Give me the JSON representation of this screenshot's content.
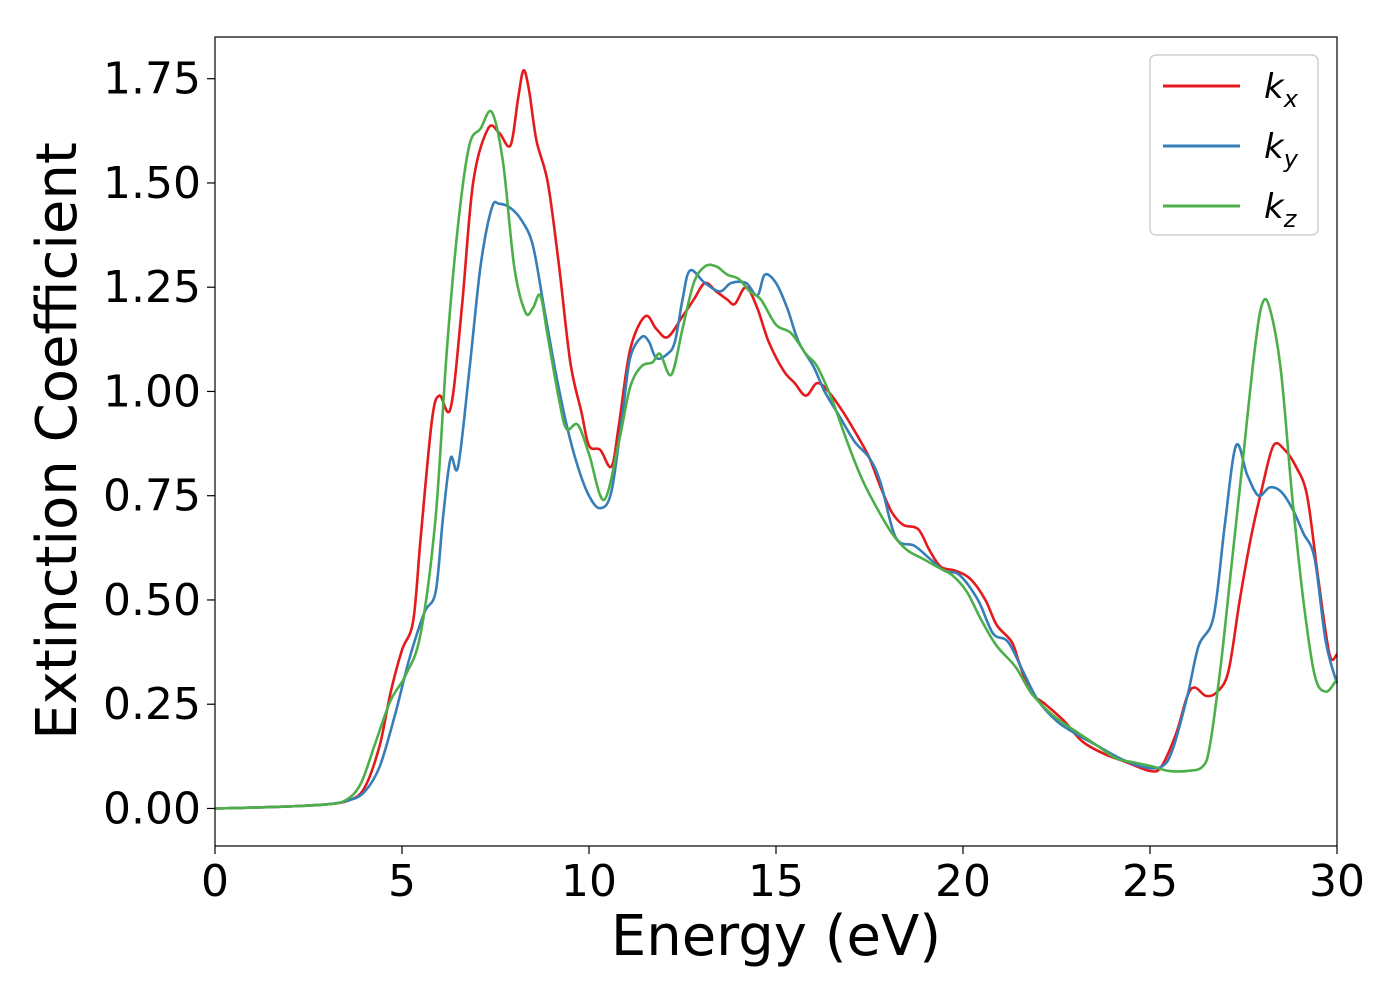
{
  "chart_data": {
    "type": "line",
    "xlabel": "Energy (eV)",
    "ylabel": "Extinction Coefficient",
    "xlim": [
      0,
      30
    ],
    "ylim": [
      -0.09,
      1.85
    ],
    "xticks": [
      0,
      5,
      10,
      15,
      20,
      25,
      30
    ],
    "yticks": [
      0.0,
      0.25,
      0.5,
      0.75,
      1.0,
      1.25,
      1.5,
      1.75
    ],
    "xtick_labels": [
      "0",
      "5",
      "10",
      "15",
      "20",
      "25",
      "30"
    ],
    "ytick_labels": [
      "0.00",
      "0.25",
      "0.50",
      "0.75",
      "1.00",
      "1.25",
      "1.50",
      "1.75"
    ],
    "grid": false,
    "legend_position": "top-right",
    "series": [
      {
        "name": "k",
        "subscript": "x",
        "color": "#e41a1c",
        "points": [
          [
            0,
            0
          ],
          [
            1,
            0.002
          ],
          [
            2,
            0.005
          ],
          [
            3,
            0.01
          ],
          [
            3.6,
            0.02
          ],
          [
            4,
            0.05
          ],
          [
            4.4,
            0.15
          ],
          [
            4.7,
            0.28
          ],
          [
            5,
            0.38
          ],
          [
            5.3,
            0.45
          ],
          [
            5.5,
            0.65
          ],
          [
            5.8,
            0.93
          ],
          [
            6,
            0.99
          ],
          [
            6.3,
            0.96
          ],
          [
            6.6,
            1.2
          ],
          [
            6.9,
            1.5
          ],
          [
            7.3,
            1.63
          ],
          [
            7.6,
            1.62
          ],
          [
            7.9,
            1.59
          ],
          [
            8.1,
            1.7
          ],
          [
            8.25,
            1.77
          ],
          [
            8.4,
            1.72
          ],
          [
            8.6,
            1.6
          ],
          [
            8.9,
            1.5
          ],
          [
            9.2,
            1.3
          ],
          [
            9.5,
            1.07
          ],
          [
            9.8,
            0.95
          ],
          [
            10,
            0.87
          ],
          [
            10.3,
            0.86
          ],
          [
            10.6,
            0.82
          ],
          [
            10.8,
            0.92
          ],
          [
            11.1,
            1.1
          ],
          [
            11.5,
            1.18
          ],
          [
            11.8,
            1.15
          ],
          [
            12.1,
            1.13
          ],
          [
            12.5,
            1.18
          ],
          [
            12.8,
            1.22
          ],
          [
            13.1,
            1.26
          ],
          [
            13.4,
            1.24
          ],
          [
            13.7,
            1.22
          ],
          [
            13.9,
            1.21
          ],
          [
            14.2,
            1.25
          ],
          [
            14.5,
            1.2
          ],
          [
            14.8,
            1.12
          ],
          [
            15.2,
            1.05
          ],
          [
            15.5,
            1.02
          ],
          [
            15.8,
            0.99
          ],
          [
            16.1,
            1.02
          ],
          [
            16.4,
            1.0
          ],
          [
            16.8,
            0.95
          ],
          [
            17.2,
            0.89
          ],
          [
            17.5,
            0.84
          ],
          [
            17.8,
            0.77
          ],
          [
            18.1,
            0.71
          ],
          [
            18.4,
            0.68
          ],
          [
            18.8,
            0.67
          ],
          [
            19.1,
            0.62
          ],
          [
            19.4,
            0.58
          ],
          [
            19.8,
            0.57
          ],
          [
            20.2,
            0.55
          ],
          [
            20.6,
            0.5
          ],
          [
            20.9,
            0.44
          ],
          [
            21.3,
            0.4
          ],
          [
            21.5,
            0.35
          ],
          [
            21.8,
            0.28
          ],
          [
            22.2,
            0.25
          ],
          [
            22.7,
            0.21
          ],
          [
            23.2,
            0.16
          ],
          [
            23.8,
            0.13
          ],
          [
            24.4,
            0.11
          ],
          [
            25,
            0.09
          ],
          [
            25.3,
            0.1
          ],
          [
            25.7,
            0.18
          ],
          [
            26,
            0.27
          ],
          [
            26.2,
            0.29
          ],
          [
            26.5,
            0.27
          ],
          [
            26.8,
            0.28
          ],
          [
            27.1,
            0.33
          ],
          [
            27.4,
            0.5
          ],
          [
            27.7,
            0.65
          ],
          [
            28,
            0.77
          ],
          [
            28.3,
            0.87
          ],
          [
            28.6,
            0.86
          ],
          [
            28.9,
            0.82
          ],
          [
            29.2,
            0.75
          ],
          [
            29.5,
            0.55
          ],
          [
            29.8,
            0.37
          ],
          [
            30,
            0.37
          ]
        ]
      },
      {
        "name": "k",
        "subscript": "y",
        "color": "#377eb8",
        "points": [
          [
            0,
            0
          ],
          [
            1,
            0.002
          ],
          [
            2,
            0.005
          ],
          [
            3,
            0.01
          ],
          [
            3.6,
            0.02
          ],
          [
            4,
            0.04
          ],
          [
            4.4,
            0.1
          ],
          [
            4.8,
            0.22
          ],
          [
            5.2,
            0.36
          ],
          [
            5.6,
            0.47
          ],
          [
            5.9,
            0.52
          ],
          [
            6.1,
            0.7
          ],
          [
            6.3,
            0.84
          ],
          [
            6.5,
            0.82
          ],
          [
            6.8,
            1.05
          ],
          [
            7.1,
            1.3
          ],
          [
            7.4,
            1.44
          ],
          [
            7.6,
            1.45
          ],
          [
            7.9,
            1.44
          ],
          [
            8.2,
            1.41
          ],
          [
            8.5,
            1.35
          ],
          [
            8.8,
            1.2
          ],
          [
            9.1,
            1.05
          ],
          [
            9.4,
            0.92
          ],
          [
            9.7,
            0.82
          ],
          [
            10,
            0.75
          ],
          [
            10.3,
            0.72
          ],
          [
            10.6,
            0.76
          ],
          [
            10.9,
            0.95
          ],
          [
            11.1,
            1.08
          ],
          [
            11.4,
            1.13
          ],
          [
            11.6,
            1.12
          ],
          [
            11.8,
            1.08
          ],
          [
            12.1,
            1.09
          ],
          [
            12.3,
            1.12
          ],
          [
            12.5,
            1.22
          ],
          [
            12.7,
            1.29
          ],
          [
            13.1,
            1.26
          ],
          [
            13.5,
            1.24
          ],
          [
            13.8,
            1.26
          ],
          [
            14.2,
            1.26
          ],
          [
            14.5,
            1.23
          ],
          [
            14.7,
            1.28
          ],
          [
            15,
            1.26
          ],
          [
            15.3,
            1.2
          ],
          [
            15.6,
            1.12
          ],
          [
            16,
            1.06
          ],
          [
            16.3,
            1.0
          ],
          [
            16.7,
            0.94
          ],
          [
            17.1,
            0.88
          ],
          [
            17.5,
            0.84
          ],
          [
            17.8,
            0.78
          ],
          [
            18.2,
            0.65
          ],
          [
            18.7,
            0.63
          ],
          [
            19.1,
            0.6
          ],
          [
            19.5,
            0.57
          ],
          [
            19.9,
            0.56
          ],
          [
            20.4,
            0.5
          ],
          [
            20.8,
            0.42
          ],
          [
            21.2,
            0.4
          ],
          [
            21.6,
            0.33
          ],
          [
            22,
            0.26
          ],
          [
            22.5,
            0.21
          ],
          [
            23,
            0.18
          ],
          [
            23.6,
            0.15
          ],
          [
            24.2,
            0.12
          ],
          [
            24.8,
            0.1
          ],
          [
            25.3,
            0.1
          ],
          [
            25.6,
            0.14
          ],
          [
            26,
            0.27
          ],
          [
            26.3,
            0.39
          ],
          [
            26.7,
            0.46
          ],
          [
            27,
            0.68
          ],
          [
            27.3,
            0.87
          ],
          [
            27.6,
            0.8
          ],
          [
            27.9,
            0.75
          ],
          [
            28.2,
            0.77
          ],
          [
            28.5,
            0.76
          ],
          [
            28.8,
            0.72
          ],
          [
            29.1,
            0.66
          ],
          [
            29.4,
            0.6
          ],
          [
            29.7,
            0.4
          ],
          [
            30,
            0.3
          ]
        ]
      },
      {
        "name": "k",
        "subscript": "z",
        "color": "#4daf4a",
        "points": [
          [
            0,
            0
          ],
          [
            1,
            0.002
          ],
          [
            2,
            0.005
          ],
          [
            3,
            0.01
          ],
          [
            3.5,
            0.02
          ],
          [
            3.9,
            0.06
          ],
          [
            4.3,
            0.16
          ],
          [
            4.7,
            0.26
          ],
          [
            5.1,
            0.32
          ],
          [
            5.5,
            0.42
          ],
          [
            5.9,
            0.7
          ],
          [
            6.2,
            1.1
          ],
          [
            6.5,
            1.4
          ],
          [
            6.8,
            1.59
          ],
          [
            7.1,
            1.63
          ],
          [
            7.4,
            1.67
          ],
          [
            7.7,
            1.55
          ],
          [
            8,
            1.3
          ],
          [
            8.3,
            1.19
          ],
          [
            8.5,
            1.2
          ],
          [
            8.7,
            1.23
          ],
          [
            8.9,
            1.13
          ],
          [
            9.2,
            0.98
          ],
          [
            9.4,
            0.91
          ],
          [
            9.7,
            0.92
          ],
          [
            10,
            0.85
          ],
          [
            10.4,
            0.74
          ],
          [
            10.8,
            0.88
          ],
          [
            11.1,
            1.01
          ],
          [
            11.4,
            1.06
          ],
          [
            11.7,
            1.07
          ],
          [
            11.9,
            1.09
          ],
          [
            12.2,
            1.04
          ],
          [
            12.5,
            1.15
          ],
          [
            12.8,
            1.26
          ],
          [
            13.1,
            1.3
          ],
          [
            13.4,
            1.3
          ],
          [
            13.7,
            1.28
          ],
          [
            14,
            1.27
          ],
          [
            14.3,
            1.24
          ],
          [
            14.6,
            1.22
          ],
          [
            15,
            1.16
          ],
          [
            15.4,
            1.14
          ],
          [
            15.8,
            1.09
          ],
          [
            16.1,
            1.06
          ],
          [
            16.5,
            0.98
          ],
          [
            16.9,
            0.88
          ],
          [
            17.3,
            0.79
          ],
          [
            17.7,
            0.72
          ],
          [
            18.1,
            0.66
          ],
          [
            18.5,
            0.62
          ],
          [
            18.9,
            0.6
          ],
          [
            19.3,
            0.58
          ],
          [
            19.7,
            0.56
          ],
          [
            20.1,
            0.52
          ],
          [
            20.5,
            0.45
          ],
          [
            20.9,
            0.39
          ],
          [
            21.4,
            0.34
          ],
          [
            21.8,
            0.28
          ],
          [
            22.2,
            0.24
          ],
          [
            22.6,
            0.21
          ],
          [
            23.1,
            0.18
          ],
          [
            23.6,
            0.15
          ],
          [
            24.1,
            0.12
          ],
          [
            24.6,
            0.11
          ],
          [
            25.1,
            0.1
          ],
          [
            25.5,
            0.09
          ],
          [
            26,
            0.09
          ],
          [
            26.4,
            0.1
          ],
          [
            26.6,
            0.15
          ],
          [
            26.9,
            0.35
          ],
          [
            27.2,
            0.6
          ],
          [
            27.5,
            0.85
          ],
          [
            27.8,
            1.1
          ],
          [
            28,
            1.21
          ],
          [
            28.2,
            1.2
          ],
          [
            28.5,
            1.05
          ],
          [
            28.8,
            0.75
          ],
          [
            29.1,
            0.5
          ],
          [
            29.4,
            0.32
          ],
          [
            29.7,
            0.28
          ],
          [
            30,
            0.31
          ]
        ]
      }
    ]
  }
}
